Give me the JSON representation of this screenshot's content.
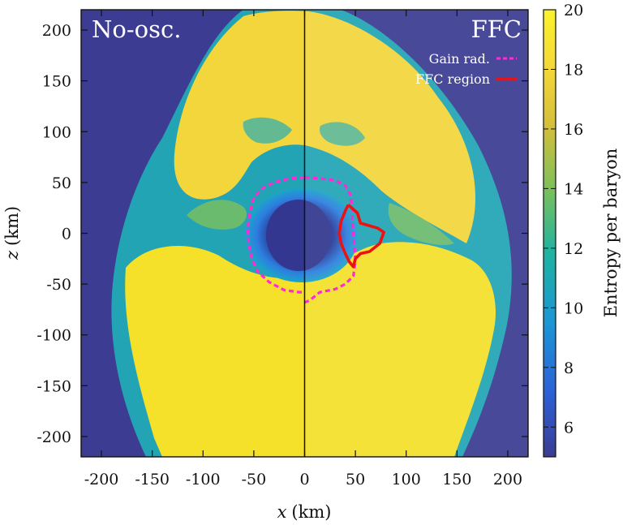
{
  "chart_data": {
    "type": "heatmap",
    "title": "",
    "panels": [
      {
        "side": "left",
        "label": "No-osc."
      },
      {
        "side": "right",
        "label": "FFC"
      }
    ],
    "xlabel_var": "x",
    "xlabel_unit": "(km)",
    "ylabel_var": "z",
    "ylabel_unit": "(km)",
    "xlim": [
      -220,
      220
    ],
    "ylim": [
      -220,
      220
    ],
    "xticks": [
      -200,
      -150,
      -100,
      -50,
      0,
      50,
      100,
      150,
      200
    ],
    "yticks": [
      200,
      150,
      100,
      50,
      0,
      -50,
      -100,
      -150,
      -200
    ],
    "colorbar": {
      "label": "Entropy per baryon",
      "range": [
        5,
        20
      ],
      "ticks": [
        20,
        18,
        16,
        14,
        12,
        10,
        8,
        6
      ],
      "colors": [
        "#3b3c92",
        "#2c5fd6",
        "#1b96d6",
        "#20b3a0",
        "#7cc15a",
        "#d5be3a",
        "#f5d838",
        "#fbf22b"
      ]
    },
    "legend": {
      "placement": "top-right",
      "entries": [
        {
          "label": "Gain rad.",
          "style": "dashed",
          "color": "#ff2ad6"
        },
        {
          "label": "FFC region",
          "style": "solid",
          "color": "#ee1111"
        }
      ]
    },
    "contours": {
      "gain_radius": [
        [
          0,
          55
        ],
        [
          15,
          54
        ],
        [
          30,
          52
        ],
        [
          40,
          47
        ],
        [
          45,
          38
        ],
        [
          47,
          25
        ],
        [
          47,
          12
        ],
        [
          48,
          0
        ],
        [
          49,
          -12
        ],
        [
          50,
          -28
        ],
        [
          48,
          -42
        ],
        [
          40,
          -50
        ],
        [
          30,
          -55
        ],
        [
          15,
          -58
        ],
        [
          5,
          -66
        ],
        [
          0,
          -68
        ]
      ],
      "gain_radius_left": [
        [
          0,
          55
        ],
        [
          -15,
          54
        ],
        [
          -30,
          50
        ],
        [
          -42,
          44
        ],
        [
          -50,
          35
        ],
        [
          -54,
          20
        ],
        [
          -56,
          5
        ],
        [
          -55,
          -10
        ],
        [
          -52,
          -25
        ],
        [
          -46,
          -38
        ],
        [
          -35,
          -48
        ],
        [
          -20,
          -56
        ],
        [
          -5,
          -58
        ],
        [
          0,
          -58
        ]
      ],
      "ffc_region": [
        [
          43,
          28
        ],
        [
          52,
          20
        ],
        [
          55,
          10
        ],
        [
          62,
          8
        ],
        [
          72,
          5
        ],
        [
          78,
          1
        ],
        [
          74,
          -10
        ],
        [
          64,
          -18
        ],
        [
          55,
          -20
        ],
        [
          50,
          -25
        ],
        [
          48,
          -33
        ],
        [
          44,
          -28
        ],
        [
          40,
          -20
        ],
        [
          36,
          -10
        ],
        [
          34,
          0
        ],
        [
          36,
          12
        ],
        [
          40,
          22
        ],
        [
          43,
          28
        ]
      ]
    }
  }
}
